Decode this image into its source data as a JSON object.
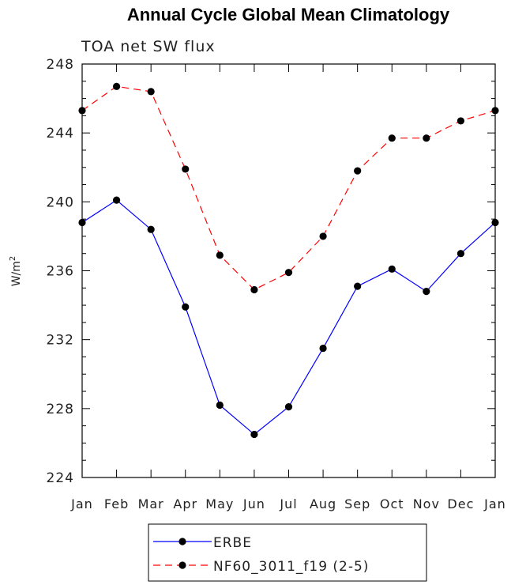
{
  "chart_data": {
    "type": "line",
    "title": "Annual Cycle Global Mean Climatology",
    "subtitle": "TOA net SW flux",
    "ylabel_base": "W/m",
    "ylabel_sup": "2",
    "xlabel": "",
    "categories": [
      "Jan",
      "Feb",
      "Mar",
      "Apr",
      "May",
      "Jun",
      "Jul",
      "Aug",
      "Sep",
      "Oct",
      "Nov",
      "Dec",
      "Jan"
    ],
    "ylim": [
      224,
      248
    ],
    "yticks": [
      224,
      228,
      232,
      236,
      240,
      244,
      248
    ],
    "grid": false,
    "legend_position": "bottom",
    "series": [
      {
        "name": "ERBE",
        "color": "#0000ff",
        "dash": "solid",
        "marker": "filled-circle",
        "values": [
          238.8,
          240.1,
          238.4,
          233.9,
          228.2,
          226.5,
          228.1,
          231.5,
          235.1,
          236.1,
          234.8,
          237.0,
          238.8
        ]
      },
      {
        "name": "NF60_3011_f19 (2-5)",
        "color": "#ff0000",
        "dash": "dashed",
        "marker": "filled-circle",
        "values": [
          245.3,
          246.7,
          246.4,
          241.9,
          236.9,
          234.9,
          235.9,
          238.0,
          241.8,
          243.7,
          243.7,
          244.7,
          245.3
        ]
      }
    ]
  }
}
